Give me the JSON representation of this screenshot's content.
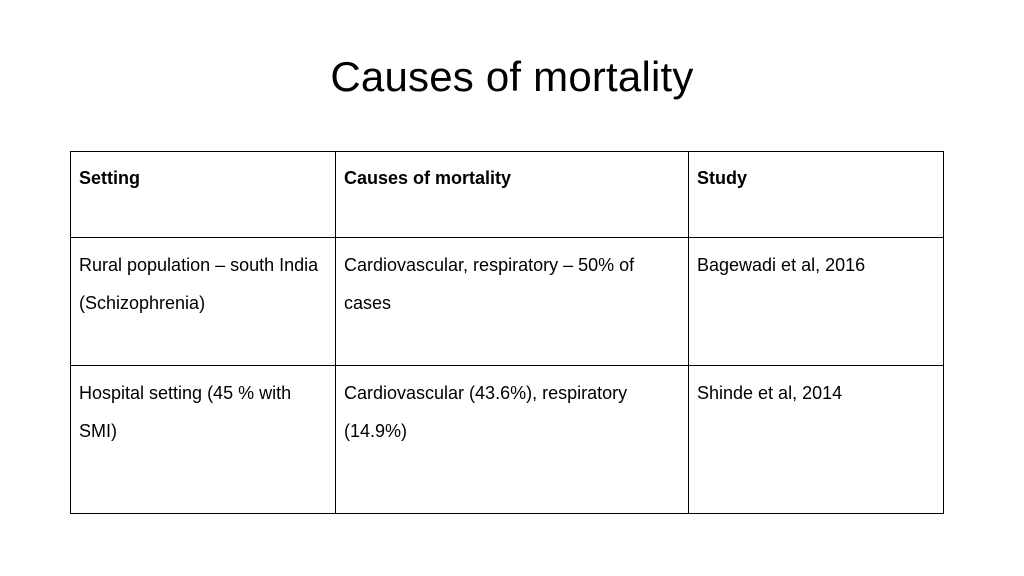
{
  "slide": {
    "title": "Causes of mortality"
  },
  "table": {
    "headers": [
      "Setting",
      "Causes of mortality",
      "Study"
    ],
    "rows": [
      [
        "Rural population – south India (Schizophrenia)",
        "Cardiovascular, respiratory – 50% of cases",
        "Bagewadi et al, 2016"
      ],
      [
        "Hospital setting (45 % with SMI)",
        "Cardiovascular (43.6%), respiratory (14.9%)",
        "Shinde et al, 2014"
      ]
    ]
  }
}
